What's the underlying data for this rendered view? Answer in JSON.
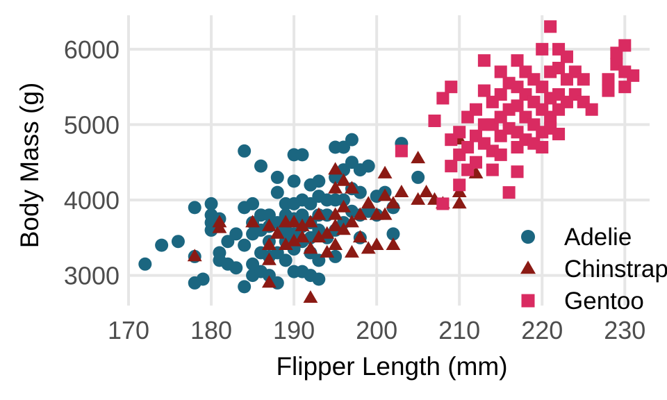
{
  "chart_data": {
    "type": "scatter",
    "xlabel": "Flipper Length (mm)",
    "ylabel": "Body Mass (g)",
    "xlim": [
      170,
      233
    ],
    "ylim": [
      2600,
      6450
    ],
    "x_ticks": [
      170,
      180,
      190,
      200,
      210,
      220,
      230
    ],
    "y_ticks": [
      3000,
      4000,
      5000,
      6000
    ],
    "x_tick_labels": [
      "170",
      "180",
      "190",
      "200",
      "210",
      "220",
      "230"
    ],
    "y_tick_labels": [
      "3000",
      "4000",
      "5000",
      "6000"
    ],
    "grid": true,
    "legend_position": "bottom-right",
    "series": [
      {
        "name": "Adelie",
        "color": "#1b6680",
        "marker": "circle",
        "points": [
          [
            172,
            3150
          ],
          [
            174,
            3400
          ],
          [
            176,
            3450
          ],
          [
            178,
            3900
          ],
          [
            178,
            3250
          ],
          [
            178,
            2900
          ],
          [
            179,
            2950
          ],
          [
            180,
            3950
          ],
          [
            180,
            3800
          ],
          [
            180,
            3700
          ],
          [
            180,
            3600
          ],
          [
            181,
            3300
          ],
          [
            181,
            3200
          ],
          [
            181,
            3750
          ],
          [
            182,
            3150
          ],
          [
            182,
            3450
          ],
          [
            183,
            3100
          ],
          [
            183,
            3550
          ],
          [
            184,
            4650
          ],
          [
            184,
            3400
          ],
          [
            184,
            3900
          ],
          [
            184,
            2850
          ],
          [
            185,
            3950
          ],
          [
            185,
            3700
          ],
          [
            185,
            3550
          ],
          [
            185,
            3150
          ],
          [
            185,
            3000
          ],
          [
            186,
            4450
          ],
          [
            186,
            3800
          ],
          [
            186,
            3600
          ],
          [
            186,
            3300
          ],
          [
            186,
            3050
          ],
          [
            187,
            3800
          ],
          [
            187,
            3650
          ],
          [
            187,
            3450
          ],
          [
            187,
            3250
          ],
          [
            187,
            3000
          ],
          [
            188,
            4300
          ],
          [
            188,
            4100
          ],
          [
            188,
            3700
          ],
          [
            188,
            3300
          ],
          [
            188,
            2900
          ],
          [
            189,
            3950
          ],
          [
            189,
            3800
          ],
          [
            189,
            3600
          ],
          [
            189,
            3450
          ],
          [
            189,
            3200
          ],
          [
            190,
            4600
          ],
          [
            190,
            4250
          ],
          [
            190,
            3950
          ],
          [
            190,
            3750
          ],
          [
            190,
            3550
          ],
          [
            190,
            3350
          ],
          [
            190,
            3050
          ],
          [
            191,
            4600
          ],
          [
            191,
            4000
          ],
          [
            191,
            3800
          ],
          [
            191,
            3650
          ],
          [
            191,
            3450
          ],
          [
            191,
            3050
          ],
          [
            192,
            4200
          ],
          [
            192,
            3950
          ],
          [
            192,
            3700
          ],
          [
            192,
            3500
          ],
          [
            192,
            3300
          ],
          [
            192,
            3000
          ],
          [
            193,
            4250
          ],
          [
            193,
            4050
          ],
          [
            193,
            3800
          ],
          [
            193,
            3600
          ],
          [
            193,
            3200
          ],
          [
            193,
            2950
          ],
          [
            194,
            4000
          ],
          [
            194,
            3800
          ],
          [
            194,
            3500
          ],
          [
            195,
            4700
          ],
          [
            195,
            4300
          ],
          [
            195,
            4000
          ],
          [
            195,
            3600
          ],
          [
            195,
            3250
          ],
          [
            196,
            4700
          ],
          [
            196,
            4400
          ],
          [
            196,
            4000
          ],
          [
            196,
            3700
          ],
          [
            197,
            4800
          ],
          [
            197,
            4500
          ],
          [
            197,
            4150
          ],
          [
            197,
            3850
          ],
          [
            198,
            4400
          ],
          [
            198,
            4100
          ],
          [
            198,
            3800
          ],
          [
            198,
            3500
          ],
          [
            199,
            4450
          ],
          [
            199,
            3850
          ],
          [
            200,
            4050
          ],
          [
            200,
            3800
          ],
          [
            201,
            4100
          ],
          [
            202,
            3900
          ],
          [
            202,
            3550
          ],
          [
            203,
            4750
          ],
          [
            205,
            4300
          ]
        ]
      },
      {
        "name": "Chinstrap",
        "color": "#8b1a14",
        "marker": "triangle",
        "points": [
          [
            178,
            3250
          ],
          [
            181,
            3700
          ],
          [
            181,
            3625
          ],
          [
            185,
            3700
          ],
          [
            187,
            3650
          ],
          [
            187,
            3400
          ],
          [
            187,
            3200
          ],
          [
            187,
            2900
          ],
          [
            188,
            3550
          ],
          [
            189,
            3700
          ],
          [
            189,
            3400
          ],
          [
            190,
            3700
          ],
          [
            190,
            3450
          ],
          [
            191,
            3650
          ],
          [
            191,
            3500
          ],
          [
            192,
            3700
          ],
          [
            192,
            3350
          ],
          [
            192,
            2700
          ],
          [
            193,
            3800
          ],
          [
            193,
            3500
          ],
          [
            194,
            3550
          ],
          [
            194,
            3300
          ],
          [
            195,
            4400
          ],
          [
            195,
            4150
          ],
          [
            195,
            3800
          ],
          [
            195,
            3650
          ],
          [
            195,
            3400
          ],
          [
            196,
            4250
          ],
          [
            196,
            3900
          ],
          [
            196,
            3600
          ],
          [
            197,
            4150
          ],
          [
            197,
            3700
          ],
          [
            197,
            3300
          ],
          [
            198,
            3800
          ],
          [
            198,
            3500
          ],
          [
            199,
            3950
          ],
          [
            199,
            3350
          ],
          [
            200,
            3800
          ],
          [
            200,
            3400
          ],
          [
            201,
            4350
          ],
          [
            201,
            4050
          ],
          [
            201,
            3800
          ],
          [
            202,
            3950
          ],
          [
            202,
            3400
          ],
          [
            203,
            4100
          ],
          [
            205,
            4550
          ],
          [
            205,
            4000
          ],
          [
            206,
            4100
          ],
          [
            207,
            4000
          ],
          [
            208,
            3950
          ],
          [
            210,
            4800
          ],
          [
            210,
            4100
          ],
          [
            210,
            3950
          ],
          [
            212,
            4350
          ]
        ]
      },
      {
        "name": "Gentoo",
        "color": "#d92b61",
        "marker": "square",
        "points": [
          [
            203,
            4650
          ],
          [
            207,
            5050
          ],
          [
            208,
            5350
          ],
          [
            208,
            3950
          ],
          [
            209,
            5500
          ],
          [
            209,
            4800
          ],
          [
            209,
            4450
          ],
          [
            210,
            4900
          ],
          [
            210,
            4600
          ],
          [
            210,
            4200
          ],
          [
            211,
            5100
          ],
          [
            211,
            4700
          ],
          [
            211,
            4400
          ],
          [
            212,
            5200
          ],
          [
            212,
            4850
          ],
          [
            212,
            4500
          ],
          [
            213,
            5850
          ],
          [
            213,
            5450
          ],
          [
            213,
            5000
          ],
          [
            213,
            4750
          ],
          [
            214,
            5300
          ],
          [
            214,
            5000
          ],
          [
            214,
            4650
          ],
          [
            214,
            4400
          ],
          [
            215,
            5700
          ],
          [
            215,
            5400
          ],
          [
            215,
            5100
          ],
          [
            215,
            4850
          ],
          [
            215,
            4600
          ],
          [
            216,
            5550
          ],
          [
            216,
            5200
          ],
          [
            216,
            4950
          ],
          [
            216,
            4100
          ],
          [
            217,
            5850
          ],
          [
            217,
            5500
          ],
          [
            217,
            5250
          ],
          [
            217,
            4900
          ],
          [
            217,
            4700
          ],
          [
            217,
            4375
          ],
          [
            218,
            5700
          ],
          [
            218,
            5400
          ],
          [
            218,
            5100
          ],
          [
            218,
            4800
          ],
          [
            219,
            5600
          ],
          [
            219,
            5300
          ],
          [
            219,
            5000
          ],
          [
            219,
            4750
          ],
          [
            220,
            6000
          ],
          [
            220,
            5500
          ],
          [
            220,
            5200
          ],
          [
            220,
            4900
          ],
          [
            220,
            4700
          ],
          [
            221,
            6300
          ],
          [
            221,
            5700
          ],
          [
            221,
            5350
          ],
          [
            221,
            5100
          ],
          [
            221,
            4950
          ],
          [
            222,
            6000
          ],
          [
            222,
            5750
          ],
          [
            222,
            5400
          ],
          [
            222,
            5200
          ],
          [
            222,
            4875
          ],
          [
            223,
            5900
          ],
          [
            223,
            5600
          ],
          [
            223,
            5300
          ],
          [
            224,
            5700
          ],
          [
            224,
            5400
          ],
          [
            225,
            5600
          ],
          [
            225,
            5300
          ],
          [
            226,
            5200
          ],
          [
            228,
            5600
          ],
          [
            228,
            5450
          ],
          [
            229,
            5950
          ],
          [
            229,
            5800
          ],
          [
            230,
            6050
          ],
          [
            230,
            5700
          ],
          [
            230,
            5500
          ],
          [
            231,
            5650
          ]
        ]
      }
    ]
  }
}
